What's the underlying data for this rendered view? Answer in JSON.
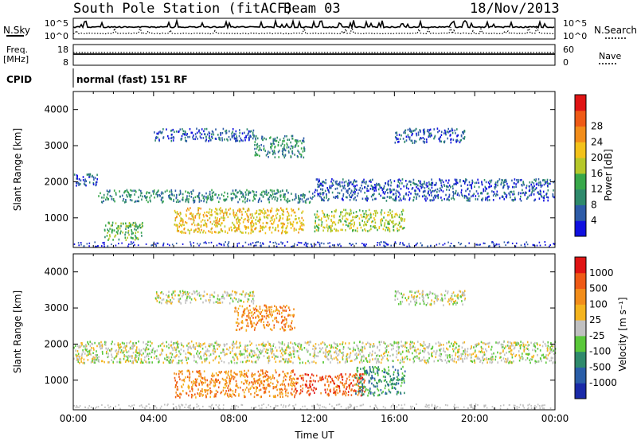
{
  "header": {
    "station": "South Pole Station (fitACF)",
    "beam": "Beam 03",
    "date": "18/Nov/2013"
  },
  "summary_panels": {
    "nsky_label": "N.Sky",
    "nsearch_label": "N.Search",
    "freq_label": "Freq.",
    "freq_unit": "[MHz]",
    "nave_label": "Nave",
    "cpid_label": "CPID",
    "cpid_value": "normal (fast) 151 RF",
    "noise_ticks": [
      "10^5",
      "10^0"
    ],
    "freq_ticks": [
      "18",
      "8"
    ],
    "nave_ticks": [
      "60",
      "0"
    ]
  },
  "chart_data": [
    {
      "type": "heatmap",
      "name": "power",
      "ylabel": "Slant Range [km]",
      "yticks": [
        "1000",
        "2000",
        "3000",
        "4000"
      ],
      "ylim": [
        180,
        4500
      ],
      "xlim": [
        "00:00",
        "24:00"
      ],
      "colorbar_label": "Power [dB]",
      "colorbar_ticks": [
        "4",
        "8",
        "12",
        "16",
        "20",
        "24",
        "28"
      ],
      "colorbar_colors": [
        "#1010e0",
        "#2e5ca8",
        "#2f8a6c",
        "#38a84a",
        "#b6c82a",
        "#f3c21a",
        "#f28d1a",
        "#ef5a16",
        "#e01414"
      ],
      "echo_bands": [
        {
          "start_h": 0.0,
          "end_h": 1.2,
          "range_lo": 1900,
          "range_hi": 2250,
          "level": 1
        },
        {
          "start_h": 1.2,
          "end_h": 12.0,
          "range_lo": 1450,
          "range_hi": 1800,
          "level": 2
        },
        {
          "start_h": 12.0,
          "end_h": 24.0,
          "range_lo": 1500,
          "range_hi": 2100,
          "level": 1
        },
        {
          "start_h": 4.0,
          "end_h": 9.0,
          "range_lo": 3150,
          "range_hi": 3500,
          "level": 1
        },
        {
          "start_h": 9.0,
          "end_h": 11.5,
          "range_lo": 2700,
          "range_hi": 3300,
          "level": 2
        },
        {
          "start_h": 16.0,
          "end_h": 19.5,
          "range_lo": 3100,
          "range_hi": 3500,
          "level": 1
        },
        {
          "start_h": 5.0,
          "end_h": 11.5,
          "range_lo": 600,
          "range_hi": 1300,
          "level": 5
        },
        {
          "start_h": 12.0,
          "end_h": 16.5,
          "range_lo": 650,
          "range_hi": 1250,
          "level": 4
        },
        {
          "start_h": 1.5,
          "end_h": 3.5,
          "range_lo": 400,
          "range_hi": 900,
          "level": 3
        }
      ]
    },
    {
      "type": "heatmap",
      "name": "velocity",
      "ylabel": "Slant Range [km]",
      "xlabel": "Time UT",
      "xticks": [
        "00:00",
        "04:00",
        "08:00",
        "12:00",
        "16:00",
        "20:00",
        "00:00"
      ],
      "yticks": [
        "1000",
        "2000",
        "3000",
        "4000"
      ],
      "ylim": [
        180,
        4500
      ],
      "colorbar_label": "Velocity [m s⁻¹]",
      "colorbar_ticks": [
        "1000",
        "500",
        "100",
        "25",
        "-25",
        "-100",
        "-500",
        "-1000"
      ],
      "colorbar_colors": [
        "#1a2aa8",
        "#2a5ea8",
        "#2f8a6c",
        "#5ac83a",
        "#c0c0c0",
        "#f4b41e",
        "#f28d1a",
        "#ef5a16",
        "#e01414"
      ],
      "echo_bands": [
        {
          "start_h": 0.0,
          "end_h": 24.0,
          "range_lo": 1500,
          "range_hi": 2100,
          "level": 4
        },
        {
          "start_h": 4.0,
          "end_h": 9.0,
          "range_lo": 3150,
          "range_hi": 3500,
          "level": 4
        },
        {
          "start_h": 8.0,
          "end_h": 11.0,
          "range_lo": 2400,
          "range_hi": 3100,
          "level": 6
        },
        {
          "start_h": 5.0,
          "end_h": 11.0,
          "range_lo": 550,
          "range_hi": 1300,
          "level": 6
        },
        {
          "start_h": 11.0,
          "end_h": 14.5,
          "range_lo": 600,
          "range_hi": 1200,
          "level": 7
        },
        {
          "start_h": 14.0,
          "end_h": 16.5,
          "range_lo": 600,
          "range_hi": 1400,
          "level": 2
        },
        {
          "start_h": 16.0,
          "end_h": 19.5,
          "range_lo": 3100,
          "range_hi": 3500,
          "level": 4
        }
      ]
    }
  ]
}
